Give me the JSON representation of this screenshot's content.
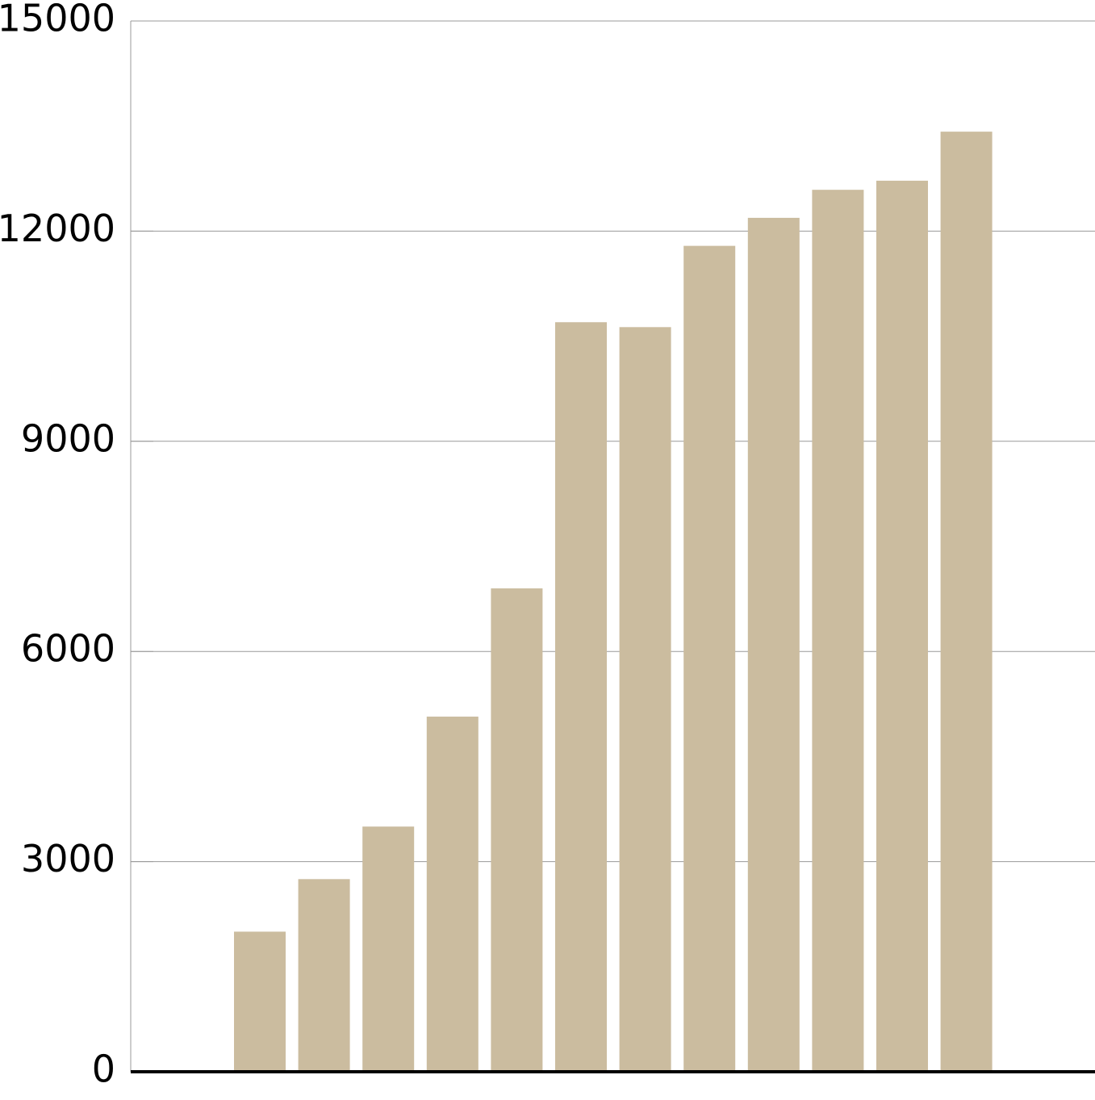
{
  "chart_data": {
    "type": "bar",
    "categories": [
      null,
      null,
      null,
      null,
      null,
      null,
      null,
      null,
      null,
      null,
      null,
      null
    ],
    "values": [
      2000,
      2750,
      3500,
      5070,
      6900,
      10700,
      10630,
      11790,
      12190,
      12590,
      12720,
      13420
    ],
    "color": "#cbbc9f",
    "ylim": [
      0,
      15000
    ],
    "yticks": [
      0,
      3000,
      6000,
      9000,
      12000,
      15000
    ],
    "grid": true
  }
}
